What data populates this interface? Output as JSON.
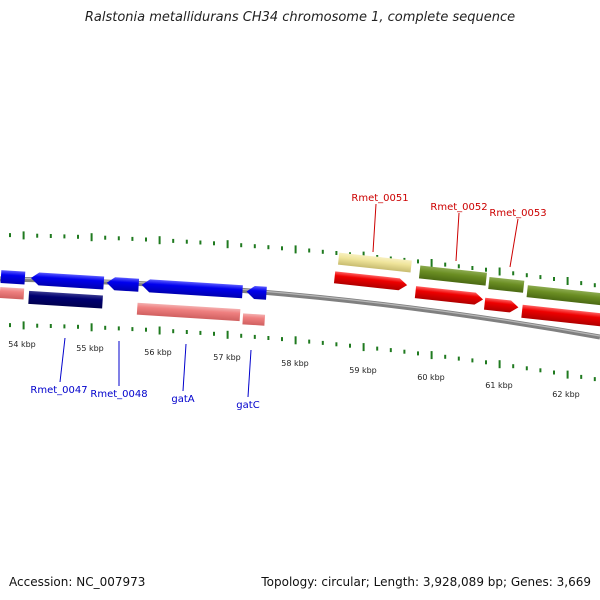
{
  "title": "Ralstonia metallidurans CH34 chromosome 1, complete sequence",
  "scale_labels": [
    "54 kbp",
    "55 kbp",
    "56 kbp",
    "57 kbp",
    "58 kbp",
    "59 kbp",
    "60 kbp",
    "61 kbp",
    "62 kbp"
  ],
  "gene_labels": {
    "forward": [
      "Rmet_0051",
      "Rmet_0052",
      "Rmet_0053"
    ],
    "reverse": [
      "Rmet_0047",
      "Rmet_0048",
      "gatA",
      "gatC"
    ]
  },
  "colors": {
    "forward_label": "#cc0000",
    "reverse_label": "#0000cc",
    "tick": "#1f7a1f",
    "backbone": "#808080"
  },
  "footer": {
    "accession": "Accession: NC_007973",
    "summary": "Topology: circular; Length: 3,928,089 bp; Genes: 3,669"
  }
}
